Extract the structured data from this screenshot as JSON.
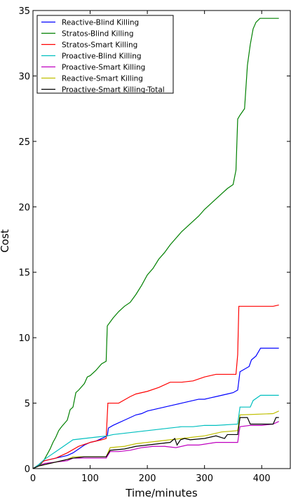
{
  "chart_data": {
    "type": "line",
    "title": "",
    "xlabel": "Time/minutes",
    "ylabel": "Cost",
    "xlim": [
      0,
      450
    ],
    "ylim": [
      0,
      35
    ],
    "xticks": [
      0,
      100,
      200,
      300,
      400
    ],
    "yticks": [
      0,
      5,
      10,
      15,
      20,
      25,
      30,
      35
    ],
    "grid": false,
    "legend_position": "top-left",
    "series": [
      {
        "name": "Reactive-Blind Killing",
        "color": "#0000ff",
        "points": [
          [
            0,
            0
          ],
          [
            5,
            0.1
          ],
          [
            10,
            0.3
          ],
          [
            15,
            0.5
          ],
          [
            20,
            0.6
          ],
          [
            30,
            0.7
          ],
          [
            40,
            0.8
          ],
          [
            50,
            0.9
          ],
          [
            60,
            1.0
          ],
          [
            70,
            1.2
          ],
          [
            80,
            1.5
          ],
          [
            90,
            1.8
          ],
          [
            100,
            2.0
          ],
          [
            110,
            2.1
          ],
          [
            120,
            2.3
          ],
          [
            130,
            2.5
          ],
          [
            132,
            3.1
          ],
          [
            140,
            3.3
          ],
          [
            150,
            3.5
          ],
          [
            160,
            3.7
          ],
          [
            170,
            3.9
          ],
          [
            180,
            4.1
          ],
          [
            190,
            4.2
          ],
          [
            200,
            4.4
          ],
          [
            210,
            4.5
          ],
          [
            220,
            4.6
          ],
          [
            230,
            4.7
          ],
          [
            240,
            4.8
          ],
          [
            250,
            4.9
          ],
          [
            260,
            5.0
          ],
          [
            270,
            5.1
          ],
          [
            280,
            5.2
          ],
          [
            290,
            5.3
          ],
          [
            300,
            5.3
          ],
          [
            310,
            5.4
          ],
          [
            320,
            5.5
          ],
          [
            330,
            5.6
          ],
          [
            340,
            5.7
          ],
          [
            350,
            5.8
          ],
          [
            358,
            6.0
          ],
          [
            362,
            7.4
          ],
          [
            370,
            7.6
          ],
          [
            378,
            7.8
          ],
          [
            382,
            8.3
          ],
          [
            390,
            8.6
          ],
          [
            398,
            9.2
          ],
          [
            430,
            9.2
          ]
        ]
      },
      {
        "name": "Stratos-Blind Killing",
        "color": "#008000",
        "points": [
          [
            0,
            0
          ],
          [
            10,
            0.2
          ],
          [
            15,
            0.4
          ],
          [
            20,
            0.7
          ],
          [
            25,
            1.1
          ],
          [
            30,
            1.5
          ],
          [
            35,
            2.0
          ],
          [
            40,
            2.4
          ],
          [
            45,
            2.9
          ],
          [
            50,
            3.2
          ],
          [
            60,
            3.7
          ],
          [
            65,
            4.5
          ],
          [
            70,
            4.7
          ],
          [
            75,
            5.8
          ],
          [
            80,
            6.0
          ],
          [
            90,
            6.5
          ],
          [
            95,
            7.0
          ],
          [
            100,
            7.1
          ],
          [
            110,
            7.5
          ],
          [
            120,
            8.0
          ],
          [
            128,
            8.2
          ],
          [
            130,
            10.9
          ],
          [
            140,
            11.5
          ],
          [
            150,
            12.0
          ],
          [
            160,
            12.4
          ],
          [
            170,
            12.7
          ],
          [
            180,
            13.3
          ],
          [
            190,
            14.0
          ],
          [
            200,
            14.8
          ],
          [
            210,
            15.3
          ],
          [
            220,
            16.0
          ],
          [
            230,
            16.5
          ],
          [
            240,
            17.1
          ],
          [
            250,
            17.6
          ],
          [
            260,
            18.1
          ],
          [
            270,
            18.5
          ],
          [
            280,
            18.9
          ],
          [
            290,
            19.3
          ],
          [
            300,
            19.8
          ],
          [
            310,
            20.2
          ],
          [
            320,
            20.6
          ],
          [
            330,
            21.0
          ],
          [
            340,
            21.4
          ],
          [
            350,
            21.7
          ],
          [
            355,
            22.8
          ],
          [
            358,
            26.7
          ],
          [
            362,
            27.0
          ],
          [
            370,
            27.5
          ],
          [
            375,
            30.8
          ],
          [
            380,
            32.4
          ],
          [
            385,
            33.6
          ],
          [
            390,
            34.1
          ],
          [
            397,
            34.4
          ],
          [
            430,
            34.4
          ]
        ]
      },
      {
        "name": "Stratos-Smart Killing",
        "color": "#ff0000",
        "points": [
          [
            0,
            0
          ],
          [
            10,
            0.3
          ],
          [
            20,
            0.6
          ],
          [
            40,
            0.8
          ],
          [
            60,
            1.2
          ],
          [
            80,
            1.7
          ],
          [
            100,
            2.0
          ],
          [
            120,
            2.2
          ],
          [
            128,
            2.3
          ],
          [
            131,
            5.0
          ],
          [
            150,
            5.0
          ],
          [
            170,
            5.5
          ],
          [
            180,
            5.7
          ],
          [
            200,
            5.9
          ],
          [
            220,
            6.2
          ],
          [
            240,
            6.6
          ],
          [
            260,
            6.6
          ],
          [
            280,
            6.7
          ],
          [
            300,
            7.0
          ],
          [
            320,
            7.2
          ],
          [
            355,
            7.2
          ],
          [
            358,
            8.7
          ],
          [
            360,
            12.4
          ],
          [
            420,
            12.4
          ],
          [
            430,
            12.5
          ]
        ]
      },
      {
        "name": "Proactive-Blind Killing",
        "color": "#00bfbf",
        "points": [
          [
            0,
            0
          ],
          [
            10,
            0.3
          ],
          [
            20,
            0.7
          ],
          [
            30,
            1.0
          ],
          [
            40,
            1.3
          ],
          [
            50,
            1.6
          ],
          [
            60,
            1.9
          ],
          [
            70,
            2.2
          ],
          [
            90,
            2.3
          ],
          [
            110,
            2.4
          ],
          [
            130,
            2.5
          ],
          [
            140,
            2.6
          ],
          [
            160,
            2.7
          ],
          [
            180,
            2.8
          ],
          [
            200,
            2.9
          ],
          [
            220,
            3.0
          ],
          [
            240,
            3.1
          ],
          [
            260,
            3.2
          ],
          [
            280,
            3.2
          ],
          [
            300,
            3.3
          ],
          [
            320,
            3.3
          ],
          [
            358,
            3.4
          ],
          [
            362,
            4.7
          ],
          [
            380,
            4.7
          ],
          [
            385,
            5.2
          ],
          [
            398,
            5.6
          ],
          [
            430,
            5.6
          ]
        ]
      },
      {
        "name": "Proactive-Smart Killing",
        "color": "#bf00bf",
        "points": [
          [
            0,
            0
          ],
          [
            10,
            0.2
          ],
          [
            20,
            0.4
          ],
          [
            40,
            0.5
          ],
          [
            60,
            0.6
          ],
          [
            70,
            0.8
          ],
          [
            90,
            0.8
          ],
          [
            128,
            0.8
          ],
          [
            135,
            1.3
          ],
          [
            150,
            1.3
          ],
          [
            170,
            1.4
          ],
          [
            190,
            1.6
          ],
          [
            210,
            1.7
          ],
          [
            230,
            1.7
          ],
          [
            250,
            1.6
          ],
          [
            270,
            1.8
          ],
          [
            290,
            1.8
          ],
          [
            320,
            2.0
          ],
          [
            358,
            2.0
          ],
          [
            362,
            3.2
          ],
          [
            380,
            3.3
          ],
          [
            400,
            3.3
          ],
          [
            420,
            3.4
          ],
          [
            430,
            3.6
          ]
        ]
      },
      {
        "name": "Reactive-Smart Killing",
        "color": "#bfbf00",
        "points": [
          [
            0,
            0
          ],
          [
            10,
            0.2
          ],
          [
            20,
            0.3
          ],
          [
            40,
            0.5
          ],
          [
            60,
            0.7
          ],
          [
            70,
            0.9
          ],
          [
            90,
            0.9
          ],
          [
            128,
            0.9
          ],
          [
            135,
            1.6
          ],
          [
            160,
            1.7
          ],
          [
            180,
            1.9
          ],
          [
            200,
            2.0
          ],
          [
            220,
            2.1
          ],
          [
            240,
            2.2
          ],
          [
            260,
            2.3
          ],
          [
            280,
            2.4
          ],
          [
            300,
            2.5
          ],
          [
            330,
            2.8
          ],
          [
            358,
            2.9
          ],
          [
            362,
            4.1
          ],
          [
            420,
            4.2
          ],
          [
            430,
            4.4
          ]
        ]
      },
      {
        "name": "Proactive-Smart Killing-Total",
        "color": "#000000",
        "points": [
          [
            0,
            0
          ],
          [
            10,
            0.2
          ],
          [
            20,
            0.3
          ],
          [
            40,
            0.5
          ],
          [
            60,
            0.7
          ],
          [
            70,
            0.8
          ],
          [
            90,
            0.9
          ],
          [
            128,
            0.9
          ],
          [
            135,
            1.4
          ],
          [
            160,
            1.5
          ],
          [
            180,
            1.7
          ],
          [
            200,
            1.8
          ],
          [
            220,
            1.9
          ],
          [
            240,
            2.0
          ],
          [
            248,
            2.3
          ],
          [
            252,
            1.8
          ],
          [
            258,
            2.2
          ],
          [
            265,
            2.3
          ],
          [
            275,
            2.2
          ],
          [
            300,
            2.3
          ],
          [
            320,
            2.5
          ],
          [
            335,
            2.3
          ],
          [
            340,
            2.6
          ],
          [
            358,
            2.6
          ],
          [
            362,
            3.9
          ],
          [
            375,
            3.9
          ],
          [
            380,
            3.4
          ],
          [
            420,
            3.4
          ],
          [
            425,
            3.9
          ],
          [
            430,
            3.9
          ]
        ]
      }
    ]
  }
}
